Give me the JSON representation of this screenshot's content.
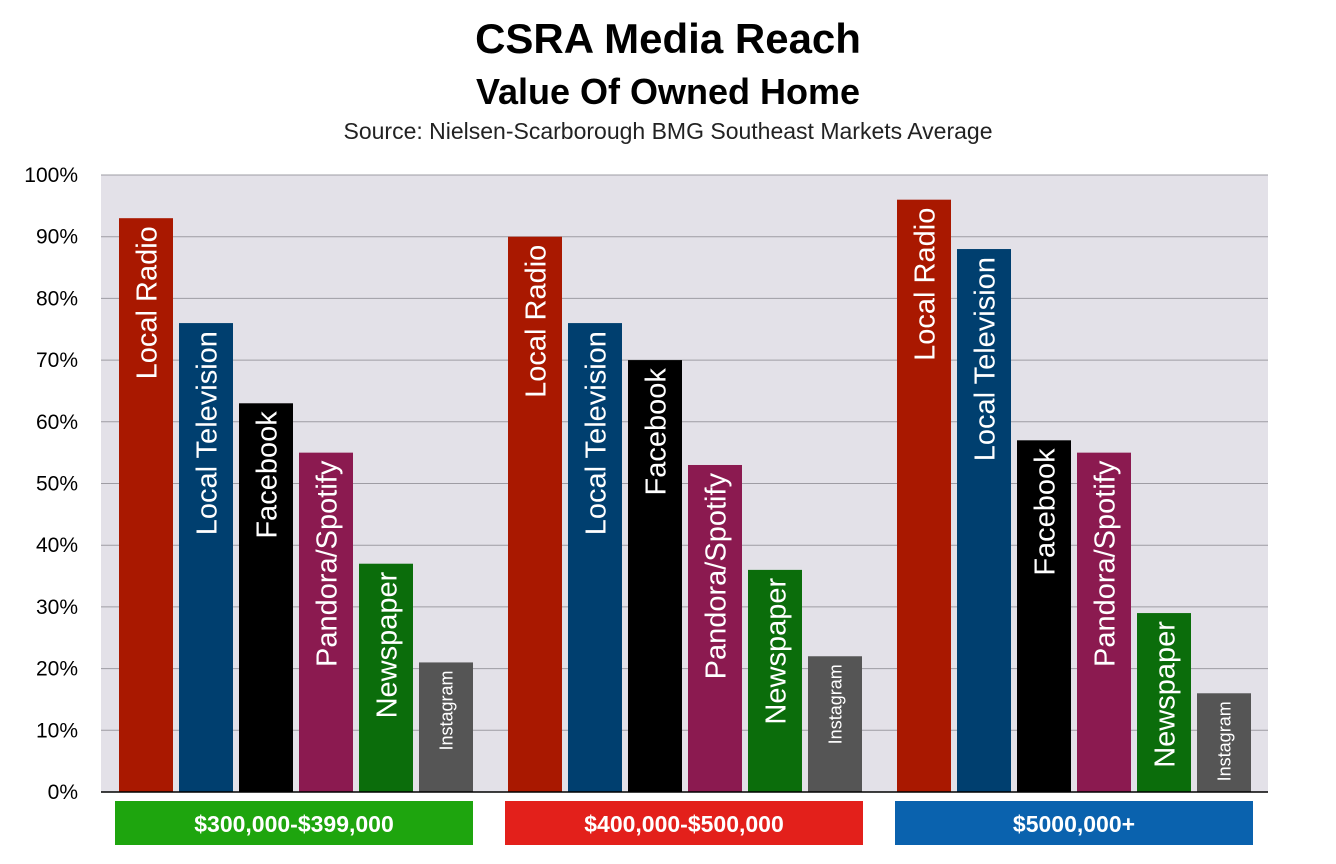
{
  "header": {
    "title": "CSRA Media Reach",
    "subtitle": "Value Of Owned Home",
    "source": "Source: Nielsen-Scarborough BMG Southeast Markets Average"
  },
  "chart_data": {
    "type": "bar",
    "title": "CSRA Media Reach",
    "subtitle": "Value Of Owned Home",
    "ylim": [
      0,
      100
    ],
    "yticks": [
      "0%",
      "10%",
      "20%",
      "30%",
      "40%",
      "50%",
      "60%",
      "70%",
      "80%",
      "90%",
      "100%"
    ],
    "grid": true,
    "categories": [
      "$300,000-$399,000",
      "$400,000-$500,000",
      "$5000,000+"
    ],
    "category_colors": [
      "#1ea50e",
      "#e3201b",
      "#0a62ae"
    ],
    "series": [
      {
        "name": "Local Radio",
        "color": "#a91800",
        "values": [
          93,
          90,
          96
        ]
      },
      {
        "name": "Local Television",
        "color": "#003f6f",
        "values": [
          76,
          76,
          88
        ]
      },
      {
        "name": "Facebook",
        "color": "#000000",
        "values": [
          63,
          70,
          57
        ]
      },
      {
        "name": "Pandora/Spotify",
        "color": "#8b1a50",
        "values": [
          55,
          53,
          55
        ]
      },
      {
        "name": "Newspaper",
        "color": "#0b6d0b",
        "values": [
          37,
          36,
          29
        ]
      },
      {
        "name": "Instagram",
        "color": "#555555",
        "values": [
          21,
          22,
          16
        ]
      }
    ]
  }
}
